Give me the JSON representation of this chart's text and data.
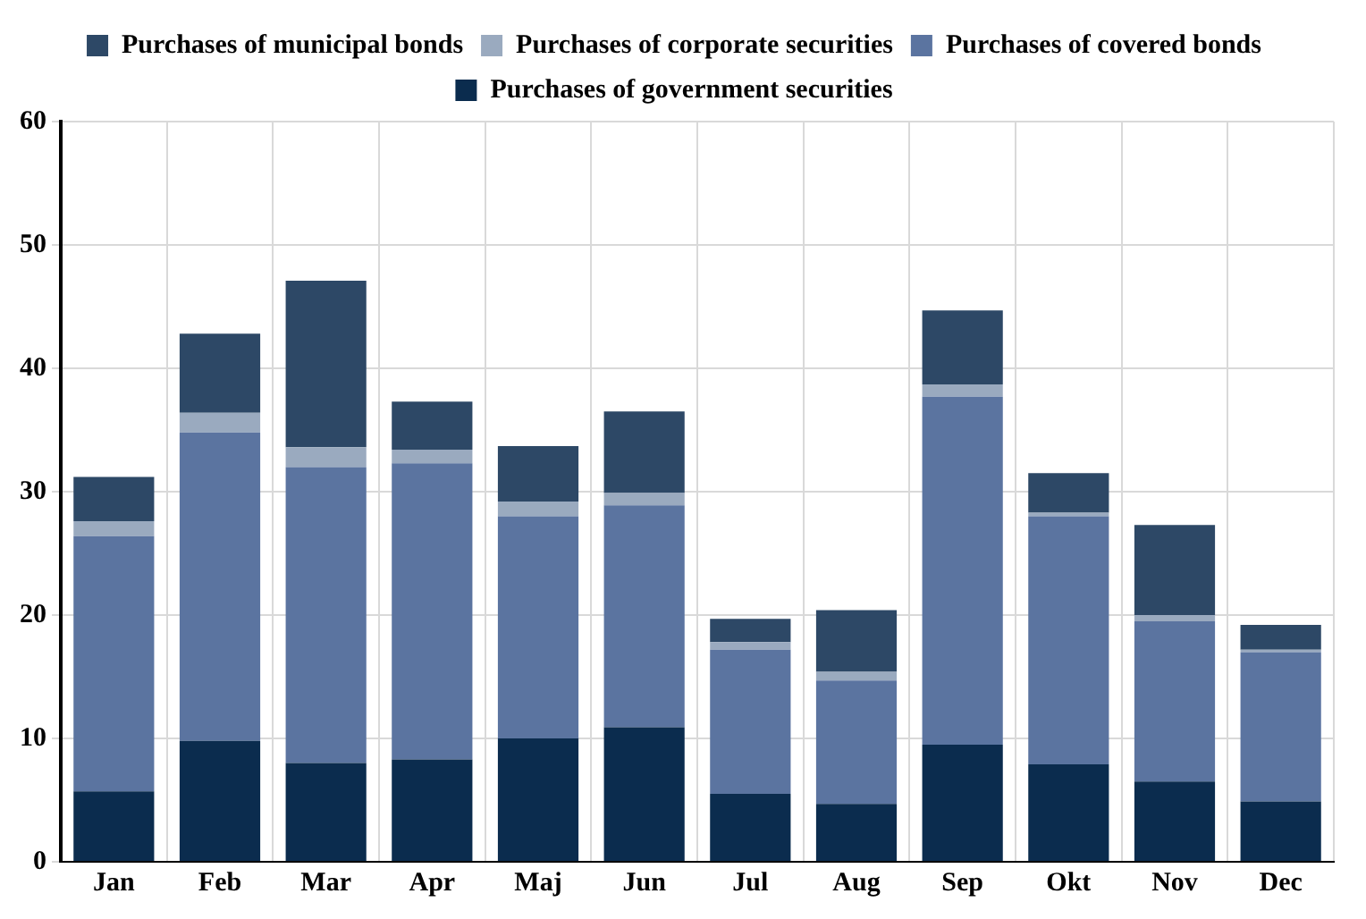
{
  "chart_data": {
    "type": "bar",
    "stacked": true,
    "categories": [
      "Jan",
      "Feb",
      "Mar",
      "Apr",
      "Maj",
      "Jun",
      "Jul",
      "Aug",
      "Sep",
      "Okt",
      "Nov",
      "Dec"
    ],
    "series": [
      {
        "name": "Purchases of government securities",
        "color": "#0b2c4e",
        "values": [
          5.7,
          9.8,
          8.0,
          8.3,
          10.0,
          10.9,
          5.5,
          4.7,
          9.5,
          7.9,
          6.5,
          4.9
        ]
      },
      {
        "name": "Purchases of covered bonds",
        "color": "#5b74a0",
        "values": [
          20.7,
          25.0,
          24.0,
          24.0,
          18.0,
          18.0,
          11.7,
          10.0,
          28.2,
          20.1,
          13.0,
          12.1
        ]
      },
      {
        "name": "Purchases of corporate securities",
        "color": "#9aaabf",
        "values": [
          1.2,
          1.6,
          1.6,
          1.1,
          1.2,
          1.0,
          0.6,
          0.7,
          1.0,
          0.3,
          0.5,
          0.2
        ]
      },
      {
        "name": "Purchases of municipal bonds",
        "color": "#2d4866",
        "values": [
          3.6,
          6.4,
          13.5,
          3.9,
          4.5,
          6.6,
          1.9,
          5.0,
          6.0,
          3.2,
          7.3,
          2.0
        ]
      }
    ],
    "ylim": [
      0,
      60
    ],
    "yticks": [
      0,
      10,
      20,
      30,
      40,
      50,
      60
    ],
    "grid": true,
    "legend": "top"
  }
}
